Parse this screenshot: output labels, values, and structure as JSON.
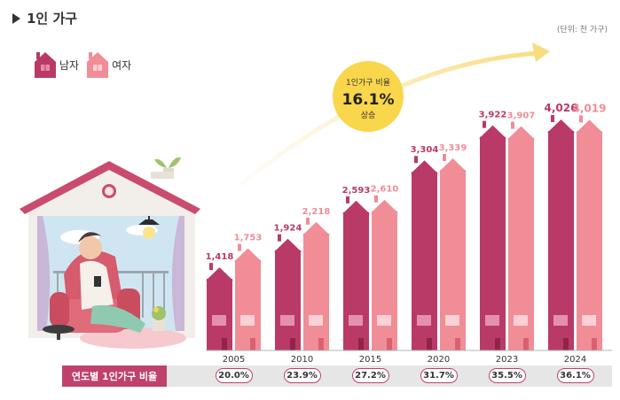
{
  "title": "1인 가구",
  "unit": "(단위: 천 가구)",
  "legend": {
    "male": "남자",
    "female": "여자"
  },
  "callout": {
    "line1": "1인가구 비율",
    "value": "16.1%",
    "line3": "상승"
  },
  "rate_label": "연도별 1인가구 비율",
  "colors": {
    "male": "#b93a66",
    "female": "#f08d97",
    "accent": "#c0426c",
    "arrow": "#fbe7a8",
    "badge": "#f9d64b"
  },
  "chart_data": {
    "type": "bar",
    "categories": [
      "2005",
      "2010",
      "2015",
      "2020",
      "2023",
      "2024"
    ],
    "series": [
      {
        "name": "남자",
        "values": [
          1418,
          1924,
          2593,
          3304,
          3922,
          4026
        ],
        "labels": [
          "1,418",
          "1,924",
          "2,593",
          "3,304",
          "3,922",
          "4,026"
        ]
      },
      {
        "name": "여자",
        "values": [
          1753,
          2218,
          2610,
          3339,
          3907,
          4019
        ],
        "labels": [
          "1,753",
          "2,218",
          "2,610",
          "3,339",
          "3,907",
          "4,019"
        ]
      }
    ],
    "rates": [
      "20.0%",
      "23.9%",
      "27.2%",
      "31.7%",
      "35.5%",
      "36.1%"
    ],
    "ylim": [
      0,
      4400
    ],
    "legend_position": "top-left"
  }
}
